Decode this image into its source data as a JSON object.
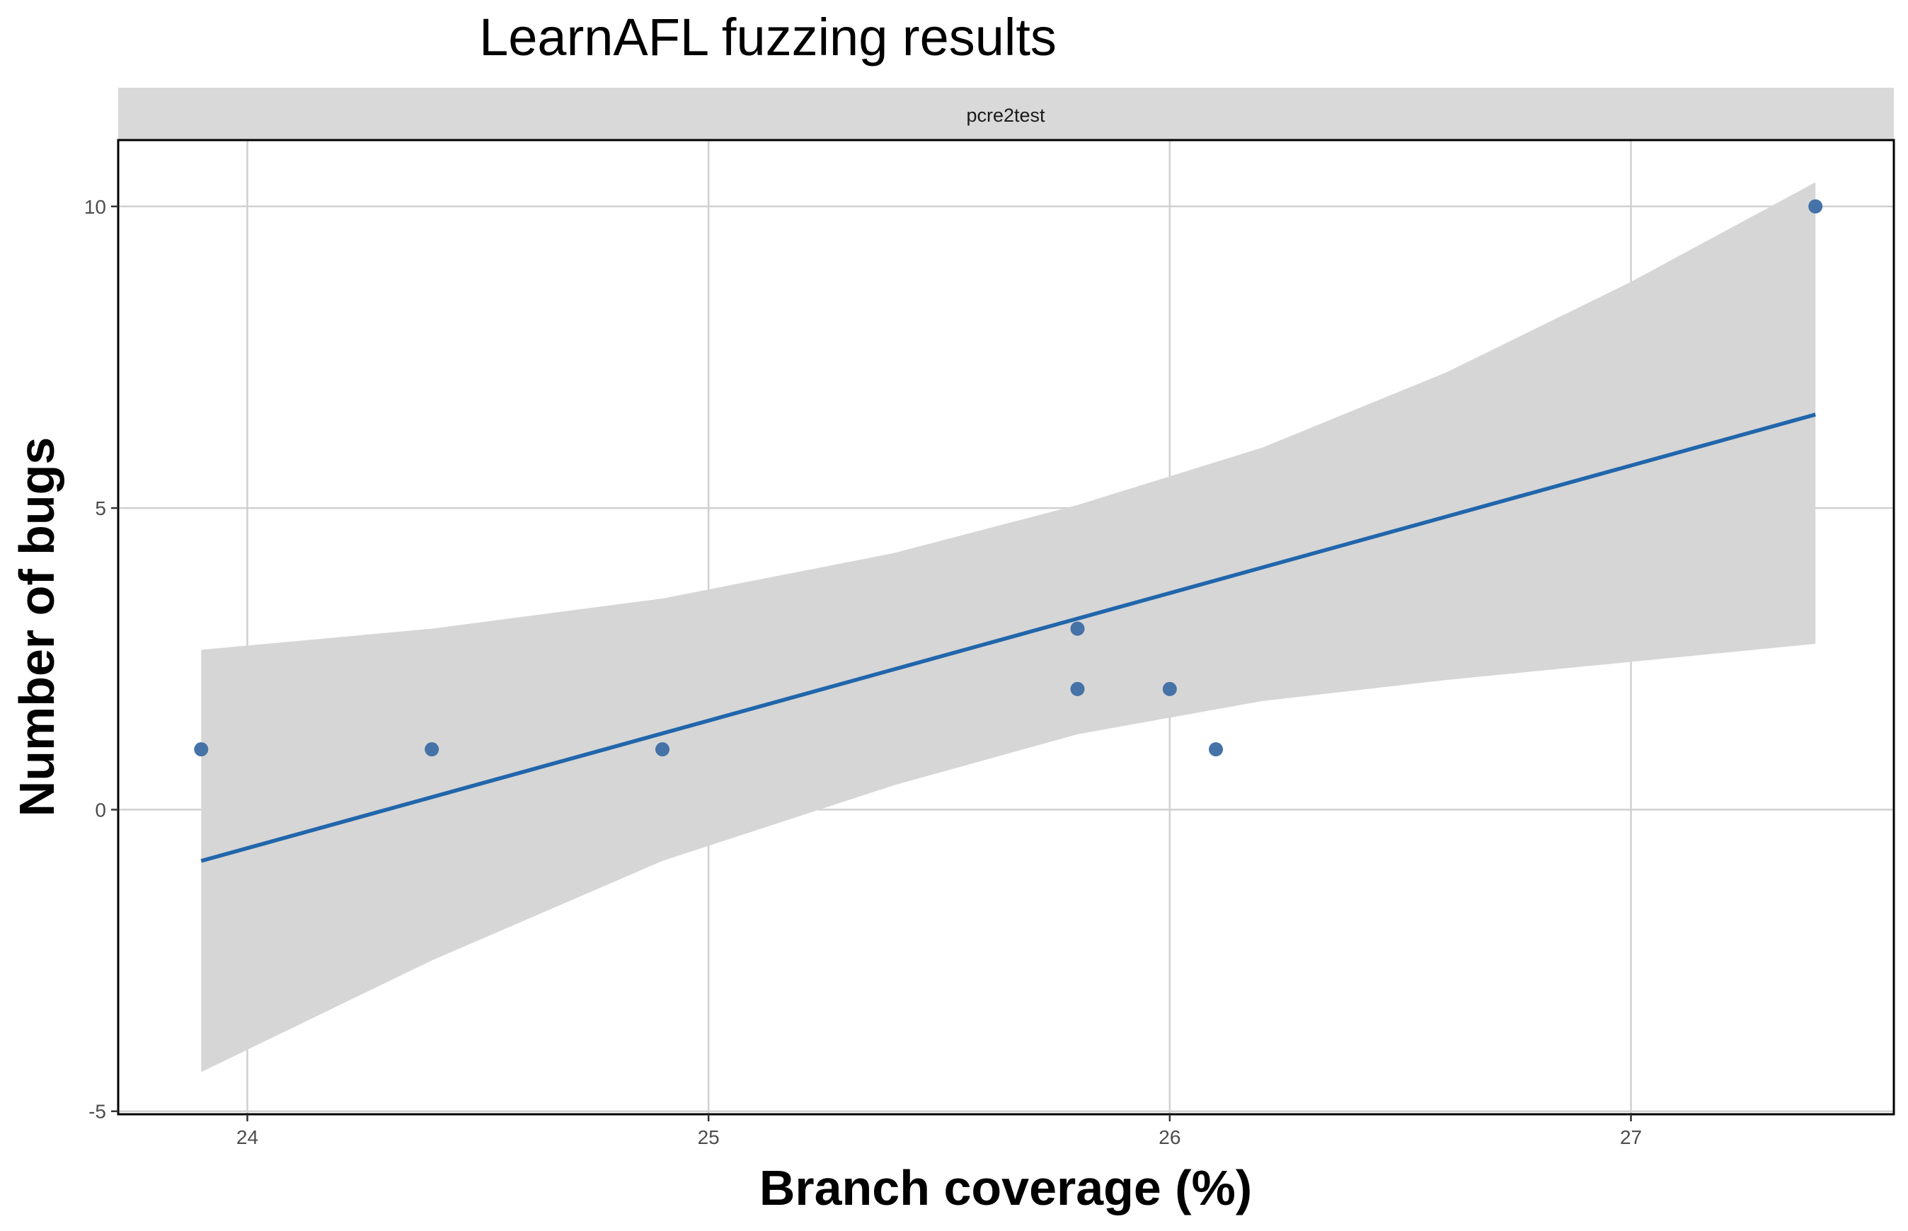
{
  "chart_data": {
    "type": "scatter",
    "title": "LearnAFL fuzzing results",
    "facet_label": "pcre2test",
    "xlabel": "Branch coverage (%)",
    "ylabel": "Number of bugs",
    "xlim": [
      23.72,
      27.57
    ],
    "ylim": [
      -5.05,
      11.1
    ],
    "x_ticks": [
      24,
      25,
      26,
      27
    ],
    "y_ticks": [
      -5,
      0,
      5,
      10
    ],
    "grid": true,
    "points": [
      {
        "x": 23.9,
        "y": 1
      },
      {
        "x": 24.4,
        "y": 1
      },
      {
        "x": 24.9,
        "y": 1
      },
      {
        "x": 25.8,
        "y": 3
      },
      {
        "x": 25.8,
        "y": 2
      },
      {
        "x": 26.0,
        "y": 2
      },
      {
        "x": 26.1,
        "y": 1
      },
      {
        "x": 27.4,
        "y": 10
      }
    ],
    "fit_line": {
      "x": [
        23.9,
        27.4
      ],
      "y": [
        -0.85,
        6.55
      ]
    },
    "confidence_band": {
      "x": [
        23.9,
        24.4,
        24.9,
        25.4,
        25.8,
        26.2,
        26.6,
        27.0,
        27.4
      ],
      "lower": [
        -4.35,
        -2.5,
        -0.85,
        0.4,
        1.25,
        1.8,
        2.15,
        2.45,
        2.75
      ],
      "upper": [
        2.65,
        3.0,
        3.5,
        4.25,
        5.05,
        6.0,
        7.25,
        8.75,
        10.4
      ]
    },
    "colors": {
      "line": "#2166ac",
      "point": "#4572a7",
      "band": "#d6d6d6",
      "strip": "#d9d9d9",
      "grid": "#d0d0d0"
    }
  }
}
